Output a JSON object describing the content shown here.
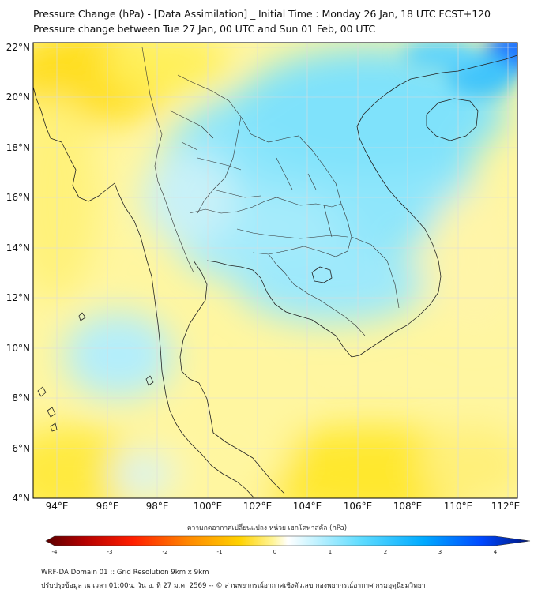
{
  "header": {
    "title": "Pressure Change (hPa) - [Data Assimilation] _ Initial Time : Monday 26 Jan, 18 UTC FCST+120",
    "subtitle": "Pressure change between Tue 27 Jan, 00 UTC and Sun 01 Feb, 00 UTC"
  },
  "map": {
    "lat_labels": [
      "22°N",
      "20°N",
      "18°N",
      "16°N",
      "14°N",
      "12°N",
      "10°N",
      "8°N",
      "6°N",
      "4°N"
    ],
    "lon_labels": [
      "94°E",
      "96°E",
      "98°E",
      "100°E",
      "102°E",
      "104°E",
      "106°E",
      "108°E",
      "110°E",
      "112°E"
    ],
    "lat_range": [
      4,
      22
    ],
    "lon_range": [
      93.1,
      112.4
    ],
    "field_colors": {
      "yellow": "#ffe400",
      "light_yellow": "#fff8a0",
      "pale": "#f4fbe8",
      "light_cyan": "#b8eefc",
      "cyan": "#6ee0fb",
      "deep_blue": "#1e78ff"
    }
  },
  "colorbar": {
    "label": "ความกดอากาศเปลี่ยนแปลง หน่วย เฮกโตพาสคัล (hPa)",
    "ticks": [
      "-4",
      "-3",
      "-2",
      "-1",
      "0",
      "1",
      "2",
      "3",
      "4"
    ],
    "range": [
      -4,
      4
    ],
    "colors": [
      "#5a0000",
      "#c80000",
      "#ff2a00",
      "#ff8c00",
      "#ffd200",
      "#fff08a",
      "#ffffff",
      "#c8f4ff",
      "#4fd6ff",
      "#00a8ff",
      "#0050ff",
      "#001a8c"
    ]
  },
  "footer": {
    "line1": "WRF-DA Domain 01 :: Grid Resolution 9km x 9km",
    "line2": "ปรับปรุงข้อมูล ณ เวลา 01:00น. วัน อ. ที่ 27 ม.ค. 2569 -- © ส่วนพยากรณ์อากาศเชิงตัวเลข กองพยากรณ์อากาศ กรมอุตุนิยมวิทยา"
  }
}
